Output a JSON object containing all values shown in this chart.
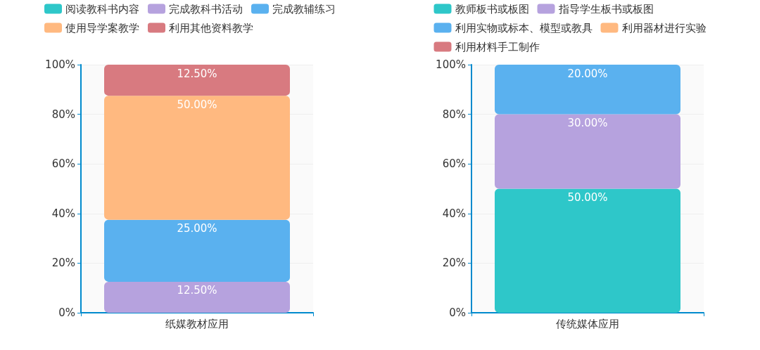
{
  "chart_data": [
    {
      "type": "bar",
      "stacked": true,
      "categories": [
        "纸媒教材应用"
      ],
      "series": [
        {
          "name": "阅读教科书内容",
          "color": "#2ec7c9",
          "values": [
            null
          ],
          "value_labels": [
            null
          ]
        },
        {
          "name": "完成教科书活动",
          "color": "#b6a2de",
          "values": [
            12.5
          ],
          "value_labels": [
            "12.50%"
          ]
        },
        {
          "name": "完成教辅练习",
          "color": "#5ab1ef",
          "values": [
            25
          ],
          "value_labels": [
            "25.00%"
          ]
        },
        {
          "name": "使用导学案教学",
          "color": "#ffb980",
          "values": [
            50
          ],
          "value_labels": [
            "50.00%"
          ]
        },
        {
          "name": "利用其他资料教学",
          "color": "#d87a80",
          "values": [
            12.5
          ],
          "value_labels": [
            "12.50%"
          ]
        }
      ],
      "ylim": [
        0,
        100
      ],
      "yticks": [
        {
          "value": 0,
          "label": "0%"
        },
        {
          "value": 20,
          "label": "20%"
        },
        {
          "value": 40,
          "label": "40%"
        },
        {
          "value": 60,
          "label": "60%"
        },
        {
          "value": 80,
          "label": "80%"
        },
        {
          "value": 100,
          "label": "100%"
        }
      ],
      "grid": "y",
      "legend": "top"
    },
    {
      "type": "bar",
      "stacked": true,
      "categories": [
        "传统媒体应用"
      ],
      "series": [
        {
          "name": "教师板书或板图",
          "color": "#2ec7c9",
          "values": [
            50
          ],
          "value_labels": [
            "50.00%"
          ]
        },
        {
          "name": "指导学生板书或板图",
          "color": "#b6a2de",
          "values": [
            30
          ],
          "value_labels": [
            "30.00%"
          ]
        },
        {
          "name": "利用实物或标本、模型或教具",
          "color": "#5ab1ef",
          "values": [
            20
          ],
          "value_labels": [
            "20.00%"
          ]
        },
        {
          "name": "利用器材进行实验",
          "color": "#ffb980",
          "values": [
            null
          ],
          "value_labels": [
            null
          ]
        },
        {
          "name": "利用材料手工制作",
          "color": "#d87a80",
          "values": [
            null
          ],
          "value_labels": [
            null
          ]
        }
      ],
      "ylim": [
        0,
        100
      ],
      "yticks": [
        {
          "value": 0,
          "label": "0%"
        },
        {
          "value": 20,
          "label": "20%"
        },
        {
          "value": 40,
          "label": "40%"
        },
        {
          "value": 60,
          "label": "60%"
        },
        {
          "value": 80,
          "label": "80%"
        },
        {
          "value": 100,
          "label": "100%"
        }
      ],
      "grid": "y",
      "legend": "top"
    }
  ]
}
